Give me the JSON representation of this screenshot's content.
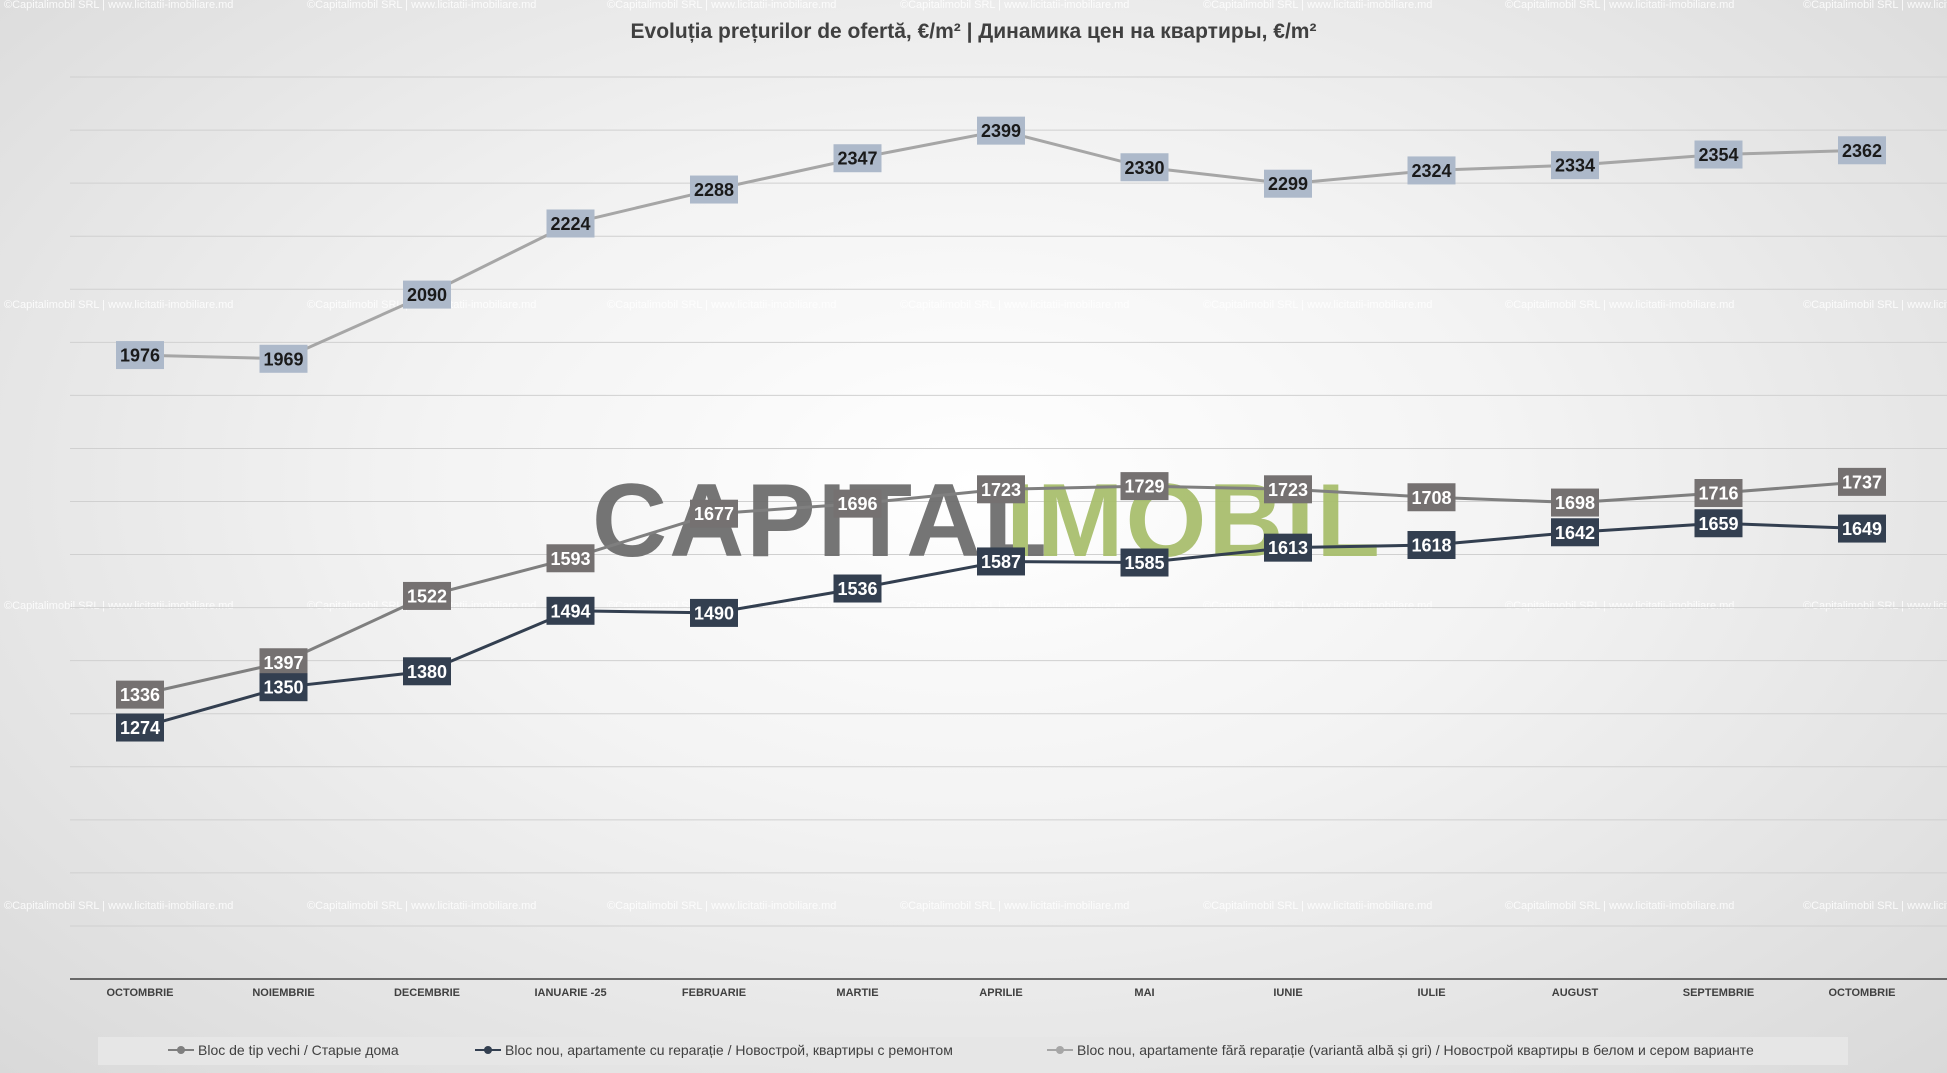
{
  "chart_data": {
    "type": "line",
    "title": "Evoluția prețurilor de ofertă, €/m²  |  Динамика цен на квартиры, €/m²",
    "categories": [
      "OCTOMBRIE",
      "NOIEMBRIE",
      "DECEMBRIE",
      "IANUARIE -25",
      "FEBRUARIE",
      "MARTIE",
      "APRILIE",
      "MAI",
      "IUNIE",
      "IULIE",
      "AUGUST",
      "SEPTEMBRIE",
      "OCTOMBRIE"
    ],
    "ylim": [
      800,
      2600
    ],
    "grid": true,
    "legend_position": "bottom",
    "series": [
      {
        "name": "Bloc de tip vechi / Старые дома",
        "color": "#7f7f7f",
        "label_bg": "#757171",
        "label_fg": "#ffffff",
        "values": [
          1336,
          1397,
          1522,
          1593,
          1677,
          1696,
          1723,
          1729,
          1723,
          1708,
          1698,
          1716,
          1737
        ]
      },
      {
        "name": "Bloc nou, apartamente cu reparație / Новострой, квартиры с ремонтом",
        "color": "#333f50",
        "label_bg": "#333f50",
        "label_fg": "#ffffff",
        "values": [
          1274,
          1350,
          1380,
          1494,
          1490,
          1536,
          1587,
          1585,
          1613,
          1618,
          1642,
          1659,
          1649
        ]
      },
      {
        "name": "Bloc nou, apartamente fără reparație (variantă albă și gri) / Новострой квартиры в белом и сером варианте",
        "color": "#a6a6a6",
        "label_bg": "#adb9ca",
        "label_fg": "#1a1a1a",
        "values": [
          1976,
          1969,
          2090,
          2224,
          2288,
          2347,
          2399,
          2330,
          2299,
          2324,
          2334,
          2354,
          2362
        ]
      }
    ]
  },
  "watermark": {
    "text": "©Capitalimobil SRL | www.licitatii-imobiliare.md",
    "brand_part1": "CAPITAL",
    "brand_part2": "IMOBIL",
    "brand_color1": "#6e6e6e",
    "brand_color2": "#a9bf6e"
  }
}
